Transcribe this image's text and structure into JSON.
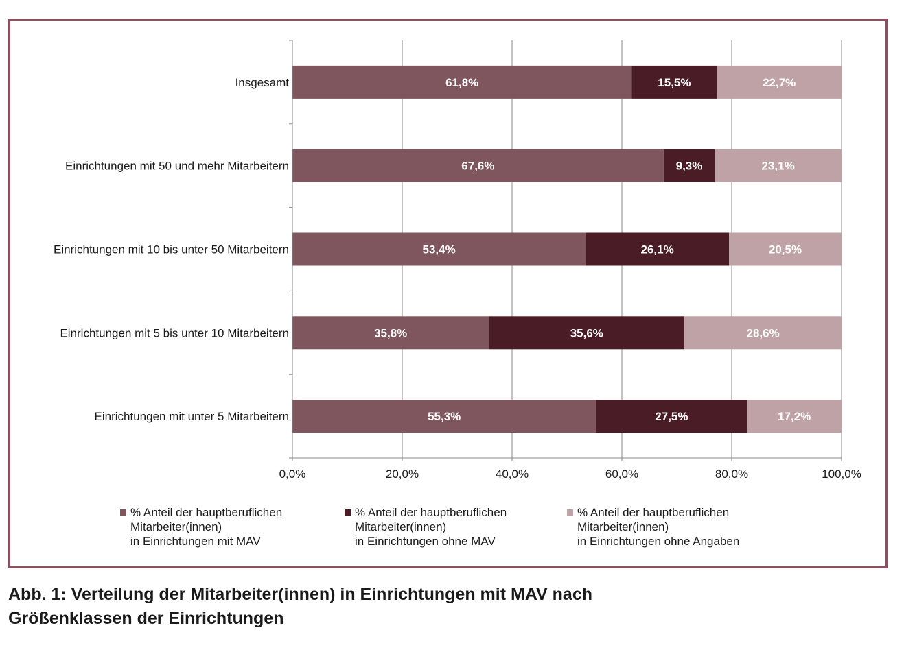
{
  "caption": {
    "line1": "Abb. 1: Verteilung der Mitarbeiter(innen) in Einrichtungen mit MAV nach",
    "line2": "Größenklassen der Einrichtungen"
  },
  "colors": {
    "frame": "#8b4f5e",
    "series": [
      "#7f565e",
      "#4a1c26",
      "#bfa2a6"
    ],
    "grid": "#8a8a8a"
  },
  "chart_data": {
    "type": "bar",
    "orientation": "horizontal",
    "stacked": true,
    "categories": [
      "Insgesamt",
      "Einrichtungen mit 50 und mehr Mitarbeitern",
      "Einrichtungen mit 10 bis unter 50 Mitarbeitern",
      "Einrichtungen mit 5 bis unter 10 Mitarbeitern",
      "Einrichtungen mit unter 5 Mitarbeitern"
    ],
    "series": [
      {
        "name": "% Anteil der hauptberuflichen\nMitarbeiter(innen)\nin Einrichtungen mit MAV",
        "values": [
          61.8,
          67.6,
          53.4,
          35.8,
          55.3
        ],
        "labels": [
          "61,8%",
          "67,6%",
          "53,4%",
          "35,8%",
          "55,3%"
        ]
      },
      {
        "name": "% Anteil der hauptberuflichen\nMitarbeiter(innen)\nin Einrichtungen ohne MAV",
        "values": [
          15.5,
          9.3,
          26.1,
          35.6,
          27.5
        ],
        "labels": [
          "15,5%",
          "9,3%",
          "26,1%",
          "35,6%",
          "27,5%"
        ]
      },
      {
        "name": "% Anteil der hauptberuflichen\nMitarbeiter(innen)\nin Einrichtungen ohne Angaben",
        "values": [
          22.7,
          23.1,
          20.5,
          28.6,
          17.2
        ],
        "labels": [
          "22,7%",
          "23,1%",
          "20,5%",
          "28,6%",
          "17,2%"
        ]
      }
    ],
    "xlim": [
      0,
      100
    ],
    "xticks": [
      0,
      20,
      40,
      60,
      80,
      100
    ],
    "xtick_labels": [
      "0,0%",
      "20,0%",
      "40,0%",
      "60,0%",
      "80,0%",
      "100,0%"
    ],
    "grid": true,
    "legend": "bottom"
  }
}
